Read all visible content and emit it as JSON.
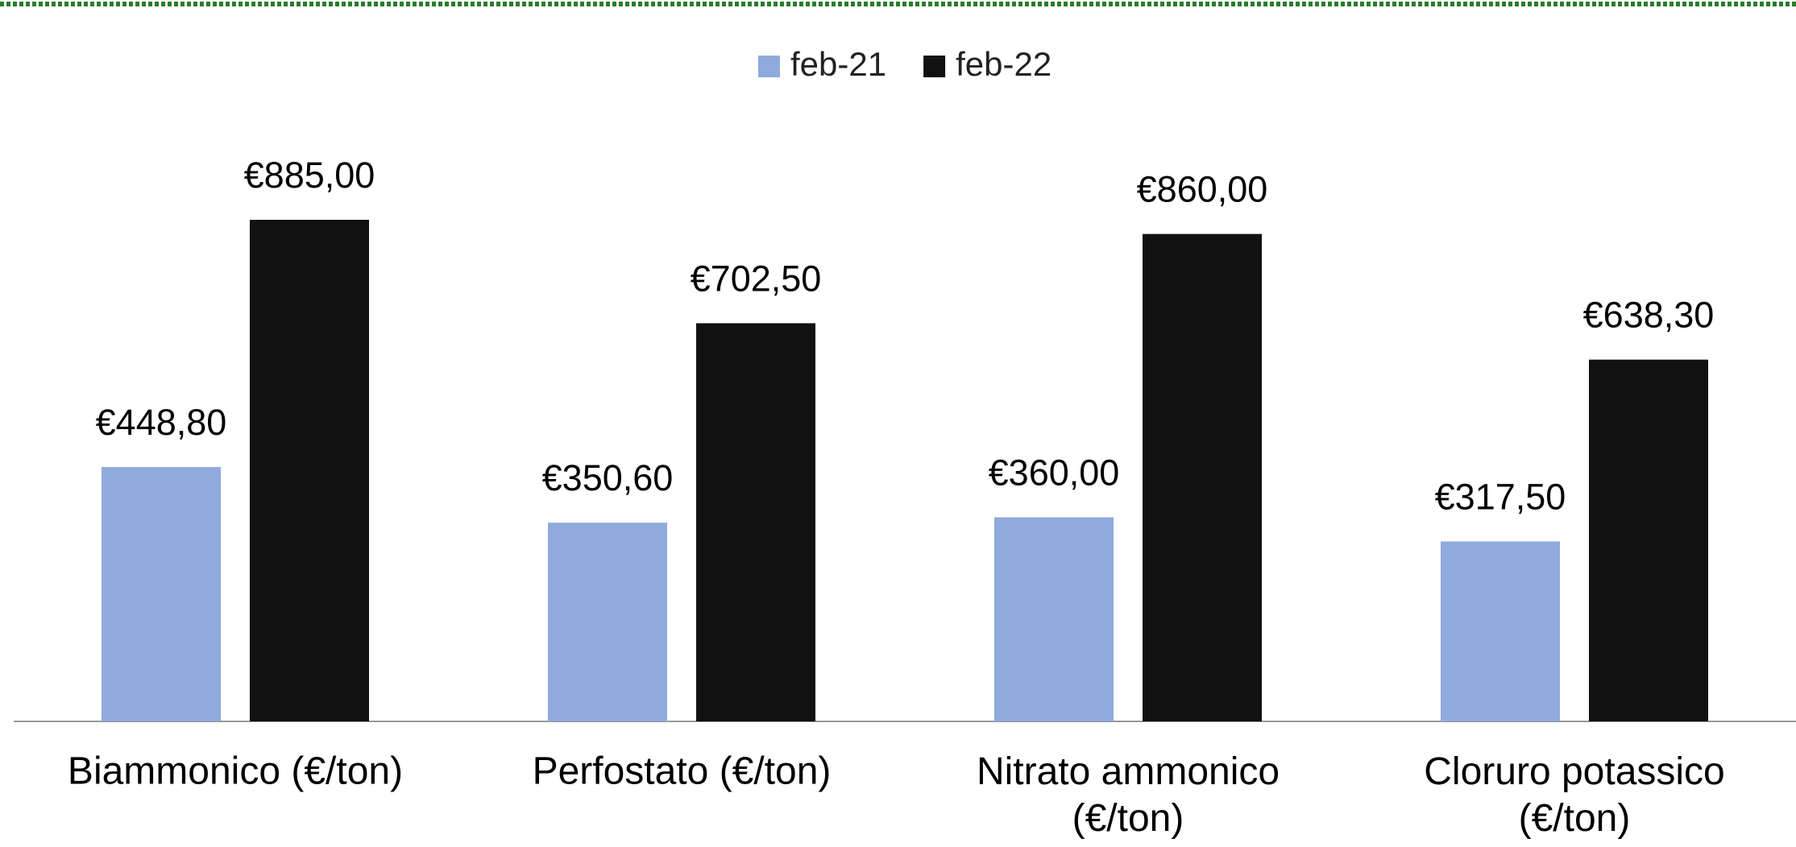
{
  "chart_data": {
    "type": "bar",
    "categories": [
      "Biammonico (€/ton)",
      "Perfostato (€/ton)",
      "Nitrato ammonico (€/ton)",
      "Cloruro potassico (€/ton)"
    ],
    "series": [
      {
        "name": "feb-21",
        "color": "#8faadc",
        "values": [
          448.8,
          350.6,
          360,
          317.5
        ],
        "value_labels": [
          "€448,80",
          "€350,60",
          "€360,00",
          "€317,50"
        ]
      },
      {
        "name": "feb-22",
        "color": "#111111",
        "values": [
          885,
          702.5,
          860,
          638.3
        ],
        "value_labels": [
          "€885,00",
          "€702,50",
          "€860,00",
          "€638,30"
        ]
      }
    ],
    "legend": "top"
  }
}
